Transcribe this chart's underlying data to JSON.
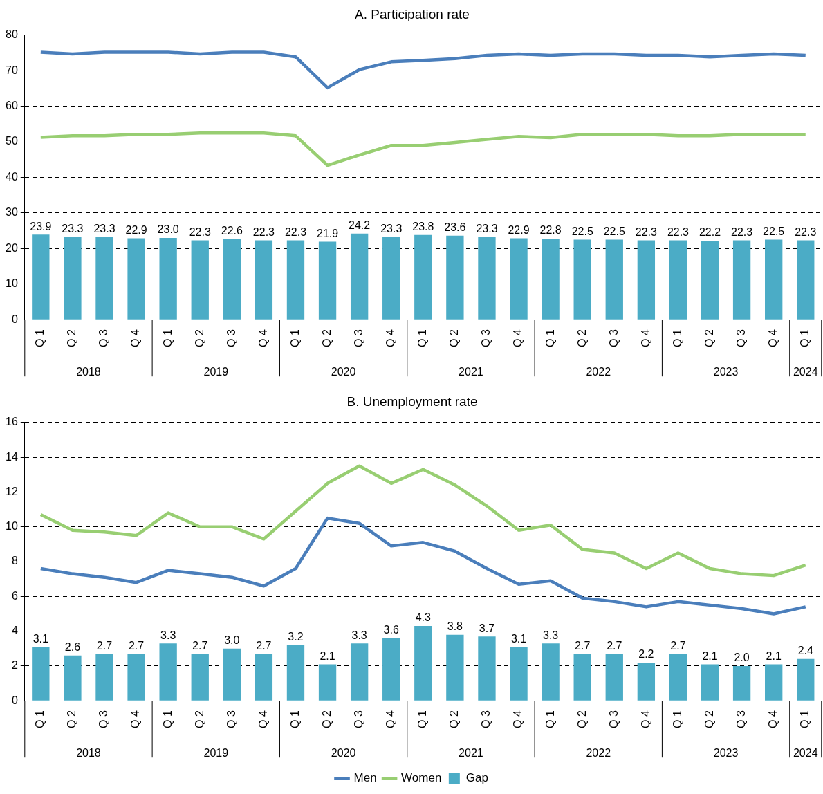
{
  "chart_data": [
    {
      "type": "bar",
      "title": "A. Participation rate",
      "categories": [
        "Q 1",
        "Q 2",
        "Q 3",
        "Q 4",
        "Q 1",
        "Q 2",
        "Q 3",
        "Q 4",
        "Q 1",
        "Q 2",
        "Q 3",
        "Q 4",
        "Q 1",
        "Q 2",
        "Q 3",
        "Q 4",
        "Q 1",
        "Q 2",
        "Q 3",
        "Q 4",
        "Q 1",
        "Q 2",
        "Q 3",
        "Q 4",
        "Q 1"
      ],
      "series": [
        {
          "type": "line",
          "color": "#4a7ebb",
          "values": [
            75.2,
            74.7,
            75.2,
            75.2,
            75.2,
            74.7,
            75.2,
            75.2,
            73.9,
            65.2,
            70.3,
            72.5,
            72.9,
            73.4,
            74.3,
            74.7,
            74.3,
            74.7,
            74.7,
            74.3,
            74.3,
            73.9,
            74.3,
            74.7,
            74.3
          ]
        },
        {
          "type": "line",
          "color": "#98ce72",
          "values": [
            51.3,
            51.7,
            51.7,
            52.1,
            52.1,
            52.5,
            52.5,
            52.5,
            51.7,
            43.4,
            46.3,
            49.0,
            49.0,
            49.8,
            50.7,
            51.5,
            51.2,
            52.1,
            52.1,
            52.1,
            51.7,
            51.7,
            52.1,
            52.1,
            52.1
          ]
        },
        {
          "color": "#4bacc6",
          "values": [
            23.9,
            23.3,
            23.3,
            22.9,
            23.0,
            22.3,
            22.6,
            22.3,
            22.3,
            21.9,
            24.2,
            23.3,
            23.8,
            23.6,
            23.3,
            22.9,
            22.8,
            22.5,
            22.5,
            22.3,
            22.3,
            22.2,
            22.3,
            22.5,
            22.3
          ],
          "value_labels": [
            "23.9",
            "23.3",
            "23.3",
            "22.9",
            "23.0",
            "22.3",
            "22.6",
            "22.3",
            "22.3",
            "21.9",
            "24.2",
            "23.3",
            "23.8",
            "23.6",
            "23.3",
            "22.9",
            "22.8",
            "22.5",
            "22.5",
            "22.3",
            "22.3",
            "22.2",
            "22.3",
            "22.5",
            "22.3"
          ]
        }
      ],
      "annotations": [
        "2018",
        "2019",
        "2020",
        "2021",
        "2022",
        "2023",
        "2024"
      ],
      "ylim": [
        0,
        80
      ],
      "yticks": [
        0,
        10,
        20,
        30,
        40,
        50,
        60,
        70,
        80
      ],
      "grid": "y",
      "legend": false,
      "marker": "none",
      "line_style": "solid"
    },
    {
      "type": "bar",
      "title": "B. Unemployment rate",
      "categories": [
        "Q 1",
        "Q 2",
        "Q 3",
        "Q 4",
        "Q 1",
        "Q 2",
        "Q 3",
        "Q 4",
        "Q 1",
        "Q 2",
        "Q 3",
        "Q 4",
        "Q 1",
        "Q 2",
        "Q 3",
        "Q 4",
        "Q 1",
        "Q 2",
        "Q 3",
        "Q 4",
        "Q 1",
        "Q 2",
        "Q 3",
        "Q 4",
        "Q 1"
      ],
      "series": [
        {
          "name": "Men",
          "type": "line",
          "color": "#4a7ebb",
          "values": [
            7.6,
            7.3,
            7.1,
            6.8,
            7.5,
            7.3,
            7.1,
            6.6,
            7.6,
            10.5,
            10.2,
            8.9,
            9.1,
            8.6,
            7.6,
            6.7,
            6.9,
            5.9,
            5.7,
            5.4,
            5.7,
            5.5,
            5.3,
            5.0,
            5.4
          ]
        },
        {
          "name": "Women",
          "type": "line",
          "color": "#98ce72",
          "values": [
            10.7,
            9.8,
            9.7,
            9.5,
            10.8,
            10.0,
            10.0,
            9.3,
            10.9,
            12.5,
            13.5,
            12.5,
            13.3,
            12.4,
            11.2,
            9.8,
            10.1,
            8.7,
            8.5,
            7.6,
            8.5,
            7.6,
            7.3,
            7.2,
            7.8
          ]
        },
        {
          "name": "Gap",
          "color": "#4bacc6",
          "values": [
            3.1,
            2.6,
            2.7,
            2.7,
            3.3,
            2.7,
            3.0,
            2.7,
            3.2,
            2.1,
            3.3,
            3.6,
            4.3,
            3.8,
            3.7,
            3.1,
            3.3,
            2.7,
            2.7,
            2.2,
            2.7,
            2.1,
            2.0,
            2.1,
            2.4
          ],
          "value_labels": [
            "3.1",
            "2.6",
            "2.7",
            "2.7",
            "3.3",
            "2.7",
            "3.0",
            "2.7",
            "3.2",
            "2.1",
            "3.3",
            "3.6",
            "4.3",
            "3.8",
            "3.7",
            "3.1",
            "3.3",
            "2.7",
            "2.7",
            "2.2",
            "2.7",
            "2.1",
            "2.0",
            "2.1",
            "2.4"
          ]
        }
      ],
      "annotations": [
        "2018",
        "2019",
        "2020",
        "2021",
        "2022",
        "2023",
        "2024"
      ],
      "ylim": [
        0,
        16
      ],
      "yticks": [
        0,
        2,
        4,
        6,
        8,
        10,
        12,
        14,
        16
      ],
      "grid": "y",
      "legend": "bottom",
      "marker": "none",
      "line_style": "solid"
    }
  ]
}
